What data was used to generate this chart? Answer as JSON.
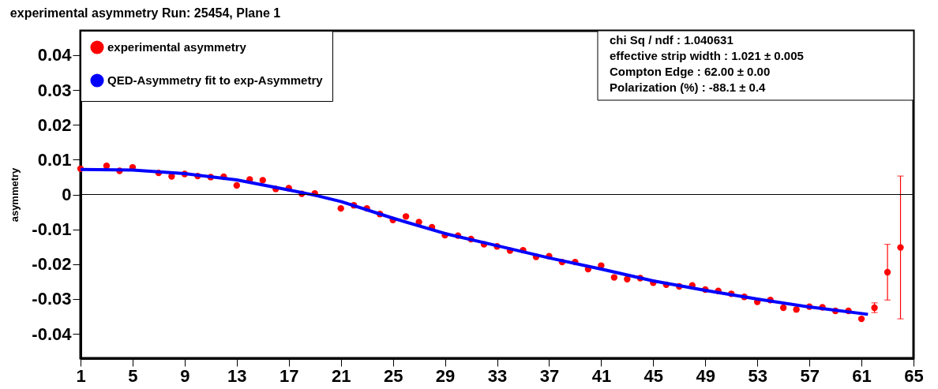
{
  "chart_data": {
    "type": "scatter",
    "title": "experimental asymmetry Run: 25454, Plane 1",
    "ylabel": "asymmetry",
    "xlim": [
      1,
      65
    ],
    "xticks": [
      1,
      5,
      9,
      13,
      17,
      21,
      25,
      29,
      33,
      37,
      41,
      45,
      49,
      53,
      57,
      61,
      65
    ],
    "ylim": [
      -0.047,
      0.047
    ],
    "yticks": [
      -0.04,
      -0.03,
      -0.02,
      -0.01,
      0,
      0.01,
      0.02,
      0.03,
      0.04
    ],
    "grid": false,
    "legend": "top left",
    "ref_lines": [
      {
        "axis": "y",
        "value": 0,
        "color": "#000000"
      }
    ],
    "annotations": [
      "chi Sq / ndf : 1.040631",
      "effective strip width : 1.021 ± 0.005",
      "Compton Edge : 62.00 ± 0.00",
      "Polarization (%) : -88.1 ± 0.4"
    ],
    "series": [
      {
        "name": "experimental asymmetry",
        "type": "scatter",
        "marker": "circle",
        "color": "#ff0000",
        "x": [
          1,
          3,
          4,
          5,
          7,
          8,
          9,
          10,
          11,
          12,
          13,
          14,
          15,
          16,
          17,
          18,
          19,
          21,
          22,
          23,
          24,
          25,
          26,
          27,
          28,
          29,
          30,
          31,
          32,
          33,
          34,
          35,
          36,
          37,
          38,
          39,
          40,
          41,
          42,
          43,
          44,
          45,
          46,
          47,
          48,
          49,
          50,
          51,
          52,
          53,
          54,
          55,
          56,
          57,
          58,
          59,
          60,
          61,
          62,
          63,
          64
        ],
        "values": [
          0.0074,
          0.0082,
          0.0068,
          0.0078,
          0.0062,
          0.0052,
          0.0059,
          0.0053,
          0.005,
          0.0051,
          0.0026,
          0.0043,
          0.0041,
          0.0016,
          0.0018,
          0.0002,
          0.0003,
          -0.004,
          -0.0031,
          -0.004,
          -0.0056,
          -0.0073,
          -0.0063,
          -0.0079,
          -0.0094,
          -0.0117,
          -0.0118,
          -0.0128,
          -0.0143,
          -0.0149,
          -0.0161,
          -0.016,
          -0.0179,
          -0.0177,
          -0.0194,
          -0.0194,
          -0.0214,
          -0.0204,
          -0.0238,
          -0.0243,
          -0.024,
          -0.0253,
          -0.0259,
          -0.0264,
          -0.0261,
          -0.0273,
          -0.0277,
          -0.0285,
          -0.0294,
          -0.0308,
          -0.0303,
          -0.0325,
          -0.033,
          -0.0322,
          -0.0324,
          -0.0334,
          -0.0334,
          -0.0357,
          -0.0325,
          -0.0223,
          -0.0152
        ],
        "errors": [
          null,
          null,
          null,
          null,
          null,
          null,
          null,
          null,
          null,
          null,
          null,
          null,
          null,
          null,
          null,
          null,
          null,
          null,
          null,
          null,
          null,
          null,
          null,
          null,
          null,
          null,
          null,
          null,
          null,
          null,
          null,
          null,
          null,
          null,
          null,
          null,
          null,
          null,
          null,
          null,
          null,
          null,
          null,
          null,
          null,
          null,
          null,
          null,
          null,
          null,
          null,
          null,
          null,
          null,
          null,
          null,
          null,
          null,
          0.0014,
          0.008,
          0.0205
        ]
      },
      {
        "name": "QED-Asymmetry fit to exp-Asymmetry",
        "type": "line",
        "marker": "none",
        "line_style": "solid",
        "color": "#0000ff",
        "x": [
          1,
          5,
          9,
          13,
          17,
          19,
          21,
          25,
          29,
          33,
          37,
          41,
          45,
          49,
          53,
          57,
          61.5
        ],
        "values": [
          0.0072,
          0.007,
          0.006,
          0.0042,
          0.0013,
          -0.0002,
          -0.002,
          -0.0068,
          -0.0112,
          -0.0147,
          -0.0182,
          -0.0214,
          -0.0248,
          -0.0275,
          -0.03,
          -0.0323,
          -0.0344
        ]
      }
    ]
  }
}
